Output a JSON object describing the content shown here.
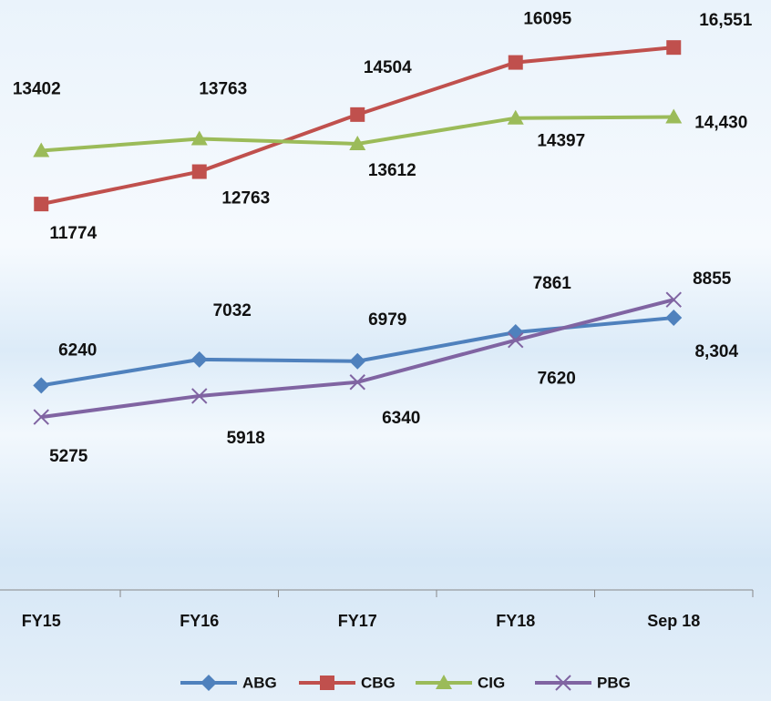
{
  "chart_data": {
    "type": "line",
    "categories": [
      "FY15",
      "FY16",
      "FY17",
      "FY18",
      "Sep 18"
    ],
    "ylim": [
      0,
      18000
    ],
    "legend": "bottom",
    "series": [
      {
        "name": "ABG",
        "color": "#4f81bd",
        "marker": "diamond",
        "values": [
          6240,
          7032,
          6979,
          7861,
          8304
        ],
        "value_labels": [
          "6240",
          "7032",
          "6979",
          "7861",
          "8,304"
        ]
      },
      {
        "name": "CBG",
        "color": "#c0504d",
        "marker": "square",
        "values": [
          11774,
          12763,
          14504,
          16095,
          16551
        ],
        "value_labels": [
          "11774",
          "12763",
          "14504",
          "16095",
          "16,551"
        ]
      },
      {
        "name": "CIG",
        "color": "#9bbb59",
        "marker": "triangle",
        "values": [
          13402,
          13763,
          13612,
          14397,
          14430
        ],
        "value_labels": [
          "13402",
          "13763",
          "13612",
          "14397",
          "14,430"
        ]
      },
      {
        "name": "PBG",
        "color": "#8064a2",
        "marker": "x",
        "values": [
          5275,
          5918,
          6340,
          7620,
          8855
        ],
        "value_labels": [
          "5275",
          "5918",
          "6340",
          "7620",
          "8855"
        ]
      }
    ]
  }
}
